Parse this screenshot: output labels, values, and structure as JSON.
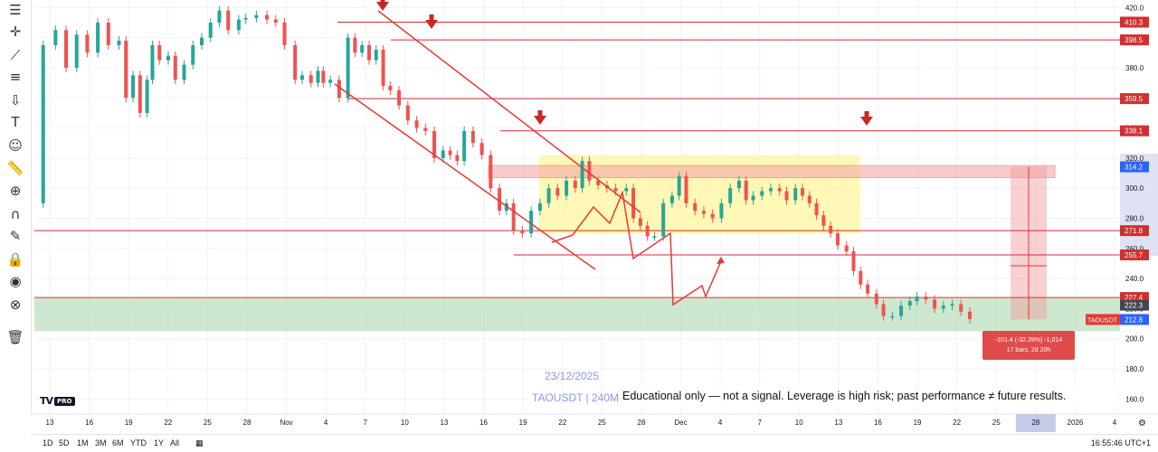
{
  "toolbar": {
    "tools": [
      {
        "name": "menu-icon",
        "glyph": "☰"
      },
      {
        "name": "crosshair-icon",
        "glyph": "✛"
      },
      {
        "name": "trendline-icon",
        "glyph": "⟋"
      },
      {
        "name": "fib-icon",
        "glyph": "≡"
      },
      {
        "name": "arrow-down-icon",
        "glyph": "⇩"
      },
      {
        "name": "text-icon",
        "glyph": "T"
      },
      {
        "name": "emoji-icon",
        "glyph": "☺"
      },
      {
        "name": "ruler-icon",
        "glyph": "📏"
      },
      {
        "name": "zoom-icon",
        "glyph": "⊕"
      },
      {
        "name": "magnet-icon",
        "glyph": "∩"
      },
      {
        "name": "brush-lock-icon",
        "glyph": "✎"
      },
      {
        "name": "lock-icon",
        "glyph": "🔒"
      },
      {
        "name": "eye-icon",
        "glyph": "◉"
      },
      {
        "name": "globe-icon",
        "glyph": "⊗"
      },
      {
        "name": "trash-icon",
        "glyph": "🗑"
      }
    ]
  },
  "bottom_bar": {
    "ranges": [
      "1D",
      "5D",
      "1M",
      "3M",
      "6M",
      "YTD",
      "1Y",
      "All"
    ],
    "clock": "16:55:46 UTC+1"
  },
  "overlay": {
    "logo": "TV",
    "logo_badge": "PRO",
    "date": "23/12/2025",
    "symbol_line": "TAOUSDT | 240M",
    "disclaimer": "Educational only — not a signal. Leverage is high risk; past performance ≠ future results.",
    "measure_line1": "-101.4 (-32.28%) -1,014",
    "measure_line2": "17 bars, 2d 20h"
  },
  "chart_data": {
    "type": "candlestick",
    "symbol": "TAOUSDT",
    "ylim": [
      150,
      425
    ],
    "y_ticks": [
      160.0,
      180.0,
      200.0,
      220.0,
      240.0,
      260.0,
      280.0,
      300.0,
      320.0,
      340.0,
      360.0,
      380.0,
      400.0,
      420.0
    ],
    "x_ticks": [
      "13",
      "16",
      "19",
      "22",
      "25",
      "28",
      "Nov",
      "4",
      "7",
      "10",
      "13",
      "16",
      "19",
      "22",
      "25",
      "28",
      "Dec",
      "4",
      "7",
      "10",
      "13",
      "16",
      "19",
      "22",
      "25",
      "28",
      "2026",
      "4"
    ],
    "x_tick_highlight": "28",
    "close_path": [
      [
        0,
        290
      ],
      [
        5,
        395
      ],
      [
        12,
        405
      ],
      [
        18,
        380
      ],
      [
        24,
        402
      ],
      [
        30,
        390
      ],
      [
        36,
        410
      ],
      [
        42,
        395
      ],
      [
        48,
        398
      ],
      [
        52,
        360
      ],
      [
        56,
        375
      ],
      [
        60,
        350
      ],
      [
        64,
        372
      ],
      [
        67,
        395
      ],
      [
        71,
        385
      ],
      [
        76,
        388
      ],
      [
        80,
        372
      ],
      [
        85,
        382
      ],
      [
        90,
        395
      ],
      [
        95,
        400
      ],
      [
        100,
        410
      ],
      [
        105,
        418
      ],
      [
        110,
        405
      ],
      [
        116,
        412
      ],
      [
        120,
        413
      ],
      [
        126,
        415
      ],
      [
        132,
        412
      ],
      [
        137,
        410
      ],
      [
        142,
        395
      ],
      [
        148,
        372
      ],
      [
        152,
        375
      ],
      [
        157,
        370
      ],
      [
        161,
        378
      ],
      [
        164,
        370
      ],
      [
        168,
        372
      ],
      [
        173,
        360
      ],
      [
        178,
        400
      ],
      [
        182,
        390
      ],
      [
        186,
        395
      ],
      [
        190,
        385
      ],
      [
        194,
        392
      ],
      [
        198,
        368
      ],
      [
        202,
        365
      ],
      [
        207,
        355
      ],
      [
        212,
        345
      ],
      [
        217,
        340
      ],
      [
        222,
        338
      ],
      [
        227,
        320
      ],
      [
        232,
        325
      ],
      [
        236,
        322
      ],
      [
        240,
        318
      ],
      [
        244,
        338
      ],
      [
        249,
        330
      ],
      [
        254,
        322
      ],
      [
        259,
        300
      ],
      [
        264,
        285
      ],
      [
        268,
        290
      ],
      [
        272,
        272
      ],
      [
        277,
        270
      ],
      [
        282,
        285
      ],
      [
        287,
        290
      ],
      [
        292,
        300
      ],
      [
        297,
        295
      ],
      [
        302,
        305
      ],
      [
        307,
        300
      ],
      [
        311,
        318
      ],
      [
        315,
        305
      ],
      [
        320,
        302
      ],
      [
        325,
        300
      ],
      [
        330,
        298
      ],
      [
        336,
        300
      ],
      [
        340,
        280
      ],
      [
        344,
        275
      ],
      [
        348,
        268
      ],
      [
        352,
        268
      ],
      [
        357,
        290
      ],
      [
        362,
        295
      ],
      [
        366,
        308
      ],
      [
        370,
        290
      ],
      [
        375,
        285
      ],
      [
        380,
        283
      ],
      [
        385,
        280
      ],
      [
        390,
        290
      ],
      [
        395,
        300
      ],
      [
        400,
        305
      ],
      [
        404,
        292
      ],
      [
        408,
        295
      ],
      [
        413,
        298
      ],
      [
        418,
        300
      ],
      [
        423,
        298
      ],
      [
        427,
        292
      ],
      [
        432,
        300
      ],
      [
        436,
        295
      ],
      [
        440,
        290
      ],
      [
        444,
        282
      ],
      [
        448,
        275
      ],
      [
        452,
        270
      ],
      [
        456,
        262
      ],
      [
        461,
        258
      ],
      [
        465,
        245
      ],
      [
        469,
        236
      ],
      [
        473,
        230
      ],
      [
        478,
        223
      ],
      [
        482,
        215
      ],
      [
        487,
        215
      ],
      [
        492,
        222
      ],
      [
        497,
        225
      ],
      [
        501,
        228
      ],
      [
        506,
        226
      ],
      [
        511,
        220
      ],
      [
        516,
        222
      ],
      [
        521,
        223
      ],
      [
        526,
        218
      ],
      [
        531,
        213
      ]
    ],
    "horizontal_levels": [
      {
        "price": 410.3,
        "label": "410.3"
      },
      {
        "price": 398.5,
        "label": "398.5"
      },
      {
        "price": 359.5,
        "label": "359.5"
      },
      {
        "price": 338.1,
        "label": "338.1"
      },
      {
        "price": 271.8,
        "label": "271.8"
      },
      {
        "price": 255.7,
        "label": "255.7"
      },
      {
        "price": 227.4,
        "label": "227.4"
      }
    ],
    "price_badges": [
      {
        "price": 314.2,
        "label": "314.2",
        "color": "#2962ff"
      },
      {
        "price": 222.3,
        "label": "222.3",
        "color": "#434651"
      },
      {
        "price": 212.8,
        "label": "212.8",
        "color": "#2962ff"
      }
    ],
    "symbol_tag": "TAOUSDT",
    "zones": [
      {
        "kind": "range",
        "from": 270,
        "to": 322
      },
      {
        "kind": "resistance",
        "from": 307,
        "to": 315
      },
      {
        "kind": "support",
        "from": 205,
        "to": 227
      }
    ],
    "markers": "down arrows above price",
    "colors": {
      "up": "#26a69a",
      "down": "#ef5350",
      "level_line": "#d32f2f",
      "range_zone": "#fff59d",
      "resistance_zone": "#f4a9a8",
      "support_zone": "#a5d6a7",
      "axis_highlight": "#c5cae9"
    }
  }
}
